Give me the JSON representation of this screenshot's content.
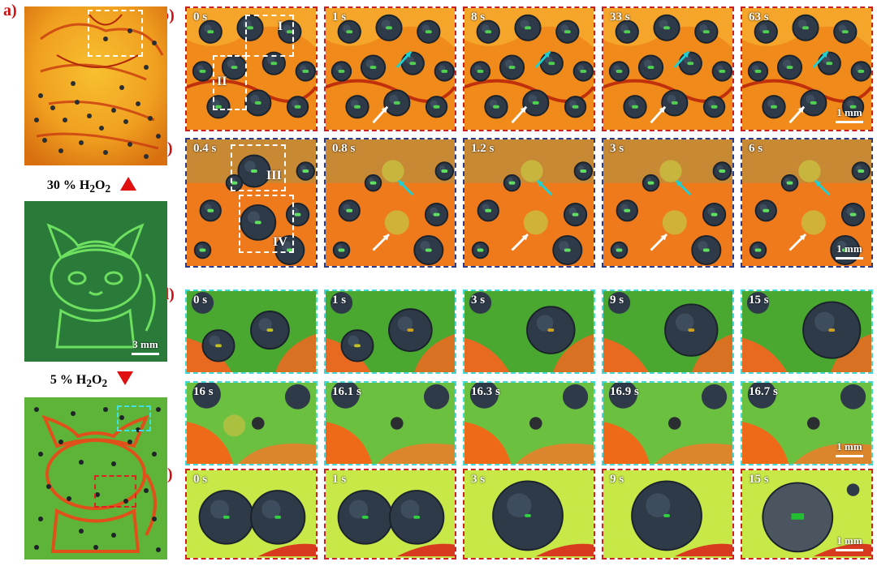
{
  "panel_labels": {
    "a": "a)",
    "b": "b)",
    "c": "c)",
    "d": "d)",
    "e": "e)"
  },
  "panel_a": {
    "cond_top": "30 % H",
    "cond_top_sub": "2",
    "cond_top_end": "O",
    "cond_top_sub2": "2",
    "cond_bottom": "5 % H",
    "cond_bottom_sub": "2",
    "cond_bottom_end": "O",
    "cond_bottom_sub2": "2",
    "scale": "3 mm"
  },
  "row_b": {
    "times": [
      "0 s",
      "1 s",
      "8 s",
      "33 s",
      "63 s"
    ],
    "regions": [
      "I",
      "II"
    ],
    "scale": "1 mm"
  },
  "row_c": {
    "times": [
      "0.4 s",
      "0.8 s",
      "1.2 s",
      "3 s",
      "6 s"
    ],
    "regions": [
      "III",
      "IV"
    ],
    "scale": "1 mm"
  },
  "row_d1": {
    "times": [
      "0 s",
      "1 s",
      "3 s",
      "9 s",
      "15 s"
    ]
  },
  "row_d2": {
    "times": [
      "16 s",
      "16.1 s",
      "16.3 s",
      "16.9 s",
      "16.7 s"
    ],
    "scale": "1 mm"
  },
  "row_e": {
    "times": [
      "0 s",
      "1 s",
      "3 s",
      "9 s",
      "15 s"
    ],
    "scale": "1 mm"
  },
  "colors": {
    "accent_red": "#d01010",
    "orange": "#f08a20",
    "green": "#8ad040",
    "droplet": "#3a4450",
    "arrow_cyan": "#20d0d0"
  }
}
